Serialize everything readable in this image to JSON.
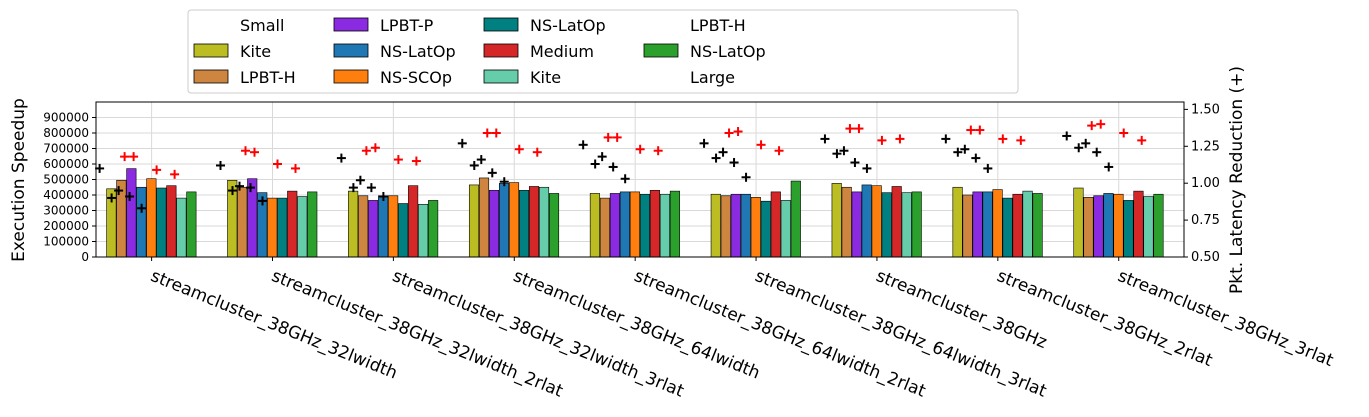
{
  "chart_data": {
    "type": "bar",
    "title": "",
    "ylabel": "Execution Speedup",
    "y2label": "Pkt. Latency Reduction (+)",
    "xlabel": "",
    "ylim": [
      0,
      1000000
    ],
    "y_ticks": [
      0,
      100000,
      200000,
      300000,
      400000,
      500000,
      600000,
      700000,
      800000,
      900000
    ],
    "y_tick_labels": [
      "0",
      "100000",
      "200000",
      "300000",
      "400000",
      "500000",
      "600000",
      "700000",
      "800000",
      "900000"
    ],
    "y2lim": [
      0.5,
      1.55
    ],
    "y2_ticks": [
      0.5,
      0.75,
      1.0,
      1.25,
      1.5
    ],
    "y2_tick_labels": [
      "0.50",
      "0.75",
      "1.00",
      "1.25",
      "1.50"
    ],
    "grid": true,
    "legend_placement": "top-center, above plot",
    "categories": [
      "streamcluster_38GHz_32lwidth",
      "streamcluster_38GHz_32lwidth_2rlat",
      "streamcluster_38GHz_32lwidth_3rlat",
      "streamcluster_38GHz_64lwidth",
      "streamcluster_38GHz_64lwidth_2rlat",
      "streamcluster_38GHz_64lwidth_3rlat",
      "streamcluster_38GHz",
      "streamcluster_38GHz_2rlat",
      "streamcluster_38GHz_3rlat"
    ],
    "legend": [
      {
        "label": "Small",
        "color": null
      },
      {
        "label": "Kite",
        "color": "#bcbd22"
      },
      {
        "label": "LPBT-H",
        "color": "#cd853f"
      },
      {
        "label": "LPBT-P",
        "color": "#8a2be2"
      },
      {
        "label": "NS-LatOp",
        "color": "#1f77b4"
      },
      {
        "label": "NS-SCOp",
        "color": "#ff7f0e"
      },
      {
        "label": "NS-LatOp",
        "color": "#008080"
      },
      {
        "label": "Medium",
        "color": "#d62728"
      },
      {
        "label": "Kite",
        "color": "#66cdaa"
      },
      {
        "label": "LPBT-H",
        "color": null
      },
      {
        "label": "NS-LatOp",
        "color": "#2ca02c"
      },
      {
        "label": "Large",
        "color": null
      }
    ],
    "series": [
      {
        "name": "Kite",
        "group": "Small",
        "color": "#bcbd22",
        "values": [
          440000,
          495000,
          425000,
          465000,
          410000,
          405000,
          475000,
          450000,
          445000
        ]
      },
      {
        "name": "LPBT-H",
        "group": "Small",
        "color": "#cd853f",
        "values": [
          495000,
          450000,
          395000,
          510000,
          380000,
          395000,
          450000,
          400000,
          385000
        ]
      },
      {
        "name": "LPBT-P",
        "group": "Small",
        "color": "#8a2be2",
        "values": [
          570000,
          505000,
          365000,
          430000,
          410000,
          405000,
          420000,
          420000,
          395000
        ]
      },
      {
        "name": "NS-LatOp",
        "group": "Small",
        "color": "#1f77b4",
        "values": [
          450000,
          415000,
          395000,
          475000,
          420000,
          405000,
          465000,
          420000,
          410000
        ]
      },
      {
        "name": "NS-SCOp",
        "group": "Small",
        "color": "#ff7f0e",
        "values": [
          505000,
          380000,
          395000,
          480000,
          420000,
          385000,
          460000,
          435000,
          405000
        ]
      },
      {
        "name": "NS-LatOp",
        "group": "Medium",
        "color": "#008080",
        "values": [
          445000,
          380000,
          345000,
          430000,
          405000,
          360000,
          415000,
          380000,
          365000
        ]
      },
      {
        "name": "Medium",
        "group": "Medium",
        "color": "#d62728",
        "values": [
          460000,
          425000,
          460000,
          455000,
          430000,
          420000,
          455000,
          405000,
          425000
        ]
      },
      {
        "name": "Kite",
        "group": "Medium",
        "color": "#66cdaa",
        "values": [
          380000,
          390000,
          340000,
          450000,
          405000,
          365000,
          415000,
          425000,
          390000
        ]
      },
      {
        "name": "NS-LatOp",
        "group": "Large",
        "color": "#2ca02c",
        "values": [
          420000,
          420000,
          365000,
          410000,
          425000,
          490000,
          420000,
          410000,
          405000
        ]
      }
    ],
    "latency_points": [
      {
        "category": 0,
        "black": [
          1.1,
          0.9,
          0.95,
          0.91,
          0.83
        ],
        "red": [
          1.18,
          1.18,
          1.09,
          1.06
        ]
      },
      {
        "category": 1,
        "black": [
          1.12,
          0.95,
          0.98,
          0.97,
          0.88
        ],
        "red": [
          1.22,
          1.21,
          1.13,
          1.1
        ]
      },
      {
        "category": 2,
        "black": [
          1.17,
          0.97,
          1.02,
          0.97,
          0.91
        ],
        "red": [
          1.22,
          1.24,
          1.16,
          1.15
        ]
      },
      {
        "category": 3,
        "black": [
          1.27,
          1.12,
          1.16,
          1.07,
          1.01
        ],
        "red": [
          1.34,
          1.34,
          1.23,
          1.21
        ]
      },
      {
        "category": 4,
        "black": [
          1.26,
          1.13,
          1.18,
          1.11,
          1.03
        ],
        "red": [
          1.31,
          1.31,
          1.23,
          1.22
        ]
      },
      {
        "category": 5,
        "black": [
          1.27,
          1.17,
          1.21,
          1.14,
          1.04
        ],
        "red": [
          1.34,
          1.35,
          1.26,
          1.22
        ]
      },
      {
        "category": 6,
        "black": [
          1.3,
          1.2,
          1.22,
          1.14,
          1.1
        ],
        "red": [
          1.37,
          1.37,
          1.29,
          1.3
        ]
      },
      {
        "category": 7,
        "black": [
          1.3,
          1.21,
          1.23,
          1.17,
          1.1
        ],
        "red": [
          1.36,
          1.36,
          1.3,
          1.29
        ]
      },
      {
        "category": 8,
        "black": [
          1.32,
          1.24,
          1.27,
          1.21,
          1.11
        ],
        "red": [
          1.39,
          1.4,
          1.34,
          1.29
        ]
      }
    ],
    "latency_colors": {
      "black": "#000000",
      "red": "#ff0000"
    }
  }
}
